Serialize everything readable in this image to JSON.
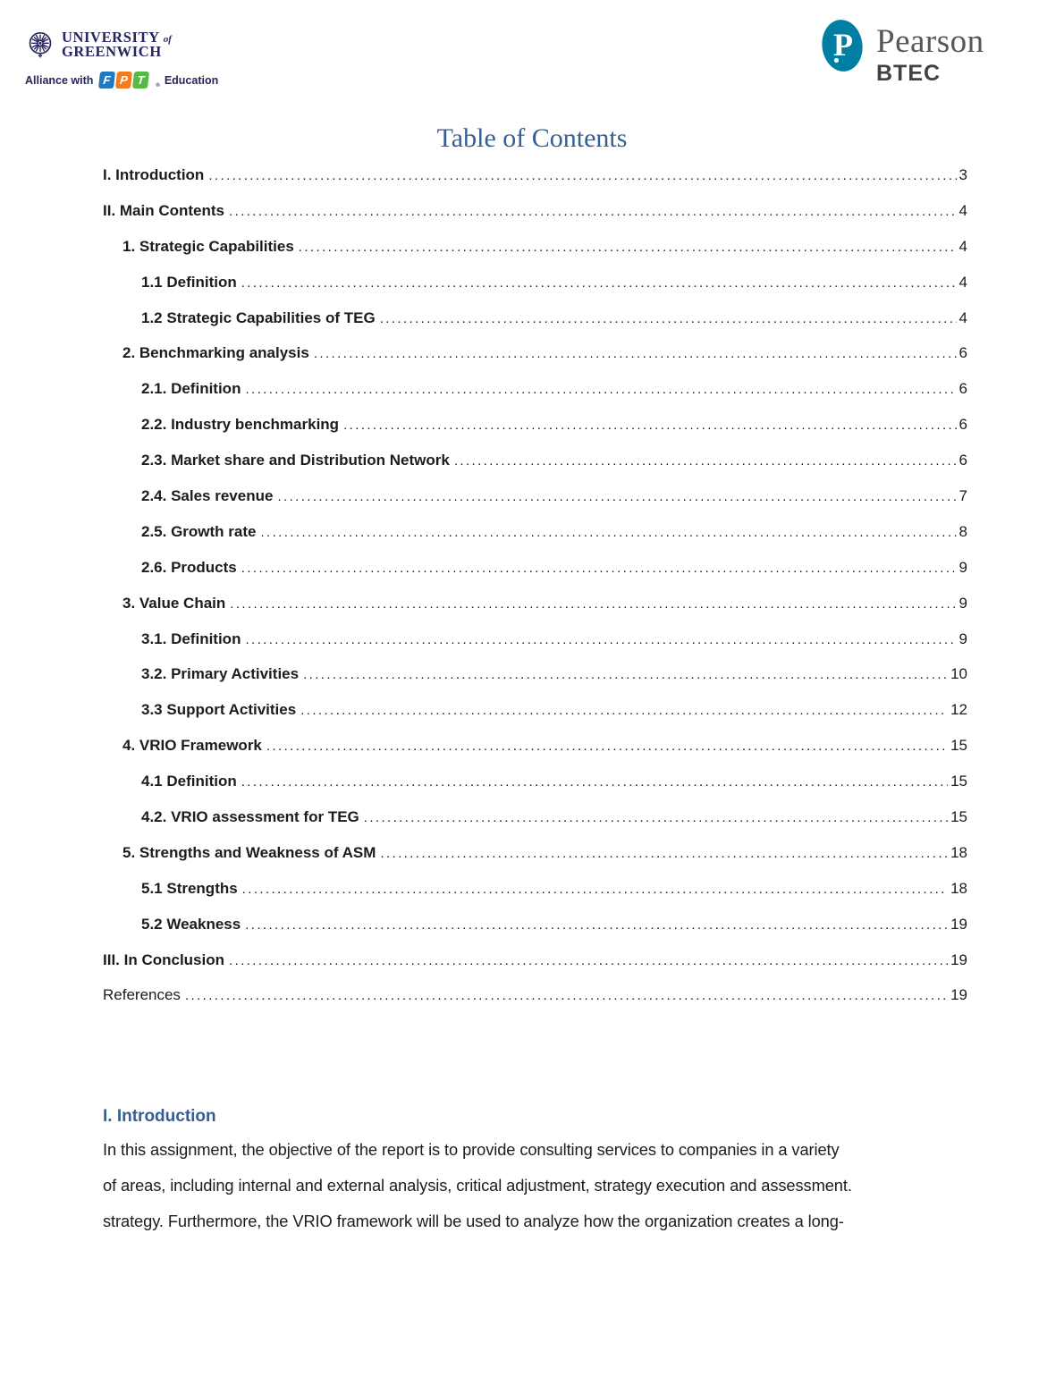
{
  "header": {
    "university": {
      "line1": "UNIVERSITY",
      "line1_small": "of",
      "line2": "GREENWICH",
      "alliance_prefix": "Alliance with",
      "fpt_letters": [
        "F",
        "P",
        "T"
      ],
      "registered_mark": "®",
      "alliance_suffix": "Education"
    },
    "pearson": {
      "letter": "P",
      "name": "Pearson",
      "sub": "BTEC"
    }
  },
  "toc": {
    "title": "Table of Contents",
    "entries": [
      {
        "label": "I. Introduction",
        "page": "3",
        "level": 0,
        "bold": true
      },
      {
        "label": "II. Main Contents",
        "page": "4",
        "level": 0,
        "bold": true
      },
      {
        "label": "1. Strategic Capabilities",
        "page": "4",
        "level": 1,
        "bold": true
      },
      {
        "label": "1.1 Definition",
        "page": "4",
        "level": 2,
        "bold": true
      },
      {
        "label": "1.2 Strategic Capabilities of TEG",
        "page": "4",
        "level": 2,
        "bold": true
      },
      {
        "label": "2. Benchmarking analysis",
        "page": "6",
        "level": 1,
        "bold": true
      },
      {
        "label": "2.1. Definition",
        "page": "6",
        "level": 2,
        "bold": true
      },
      {
        "label": "2.2. Industry benchmarking",
        "page": "6",
        "level": 2,
        "bold": true
      },
      {
        "label": "2.3. Market share and Distribution Network",
        "page": "6",
        "level": 2,
        "bold": true
      },
      {
        "label": "2.4. Sales revenue",
        "page": "7",
        "level": 2,
        "bold": true
      },
      {
        "label": "2.5. Growth rate",
        "page": "8",
        "level": 2,
        "bold": true
      },
      {
        "label": "2.6. Products",
        "page": "9",
        "level": 2,
        "bold": true
      },
      {
        "label": "3. Value Chain",
        "page": "9",
        "level": 1,
        "bold": true
      },
      {
        "label": "3.1. Definition",
        "page": "9",
        "level": 2,
        "bold": true
      },
      {
        "label": "3.2. Primary Activities",
        "page": "10",
        "level": 2,
        "bold": true
      },
      {
        "label": "3.3 Support Activities",
        "page": "12",
        "level": 2,
        "bold": true
      },
      {
        "label": "4. VRIO Framework",
        "page": "15",
        "level": 1,
        "bold": true
      },
      {
        "label": "4.1 Definition",
        "page": "15",
        "level": 2,
        "bold": true
      },
      {
        "label": "4.2. VRIO assessment for TEG",
        "page": "15",
        "level": 2,
        "bold": true
      },
      {
        "label": "5. Strengths and Weakness of ASM",
        "page": "18",
        "level": 1,
        "bold": true
      },
      {
        "label": "5.1 Strengths",
        "page": "18",
        "level": 2,
        "bold": true
      },
      {
        "label": "5.2 Weakness",
        "page": "19",
        "level": 2,
        "bold": true
      },
      {
        "label": "III. In Conclusion",
        "page": "19",
        "level": 0,
        "bold": true
      },
      {
        "label": "References",
        "page": "19",
        "level": 0,
        "bold": false
      }
    ]
  },
  "intro": {
    "heading": "I. Introduction",
    "lines": [
      "In this assignment, the objective of the report is to provide consulting services to companies in a variety",
      "of areas, including internal and external analysis, critical adjustment, strategy execution and assessment.",
      "strategy. Furthermore, the VRIO framework will be used to analyze how the organization creates a long-"
    ]
  },
  "colors": {
    "title_blue": "#365f91",
    "heading_blue": "#365f91",
    "logo_navy": "#26265c",
    "pearson_teal": "#007fa3",
    "pearson_gray": "#575757",
    "fpt_blue": "#1f7ac0",
    "fpt_orange": "#f47b20",
    "fpt_green": "#58b947",
    "body_text": "#1c1c1c"
  }
}
